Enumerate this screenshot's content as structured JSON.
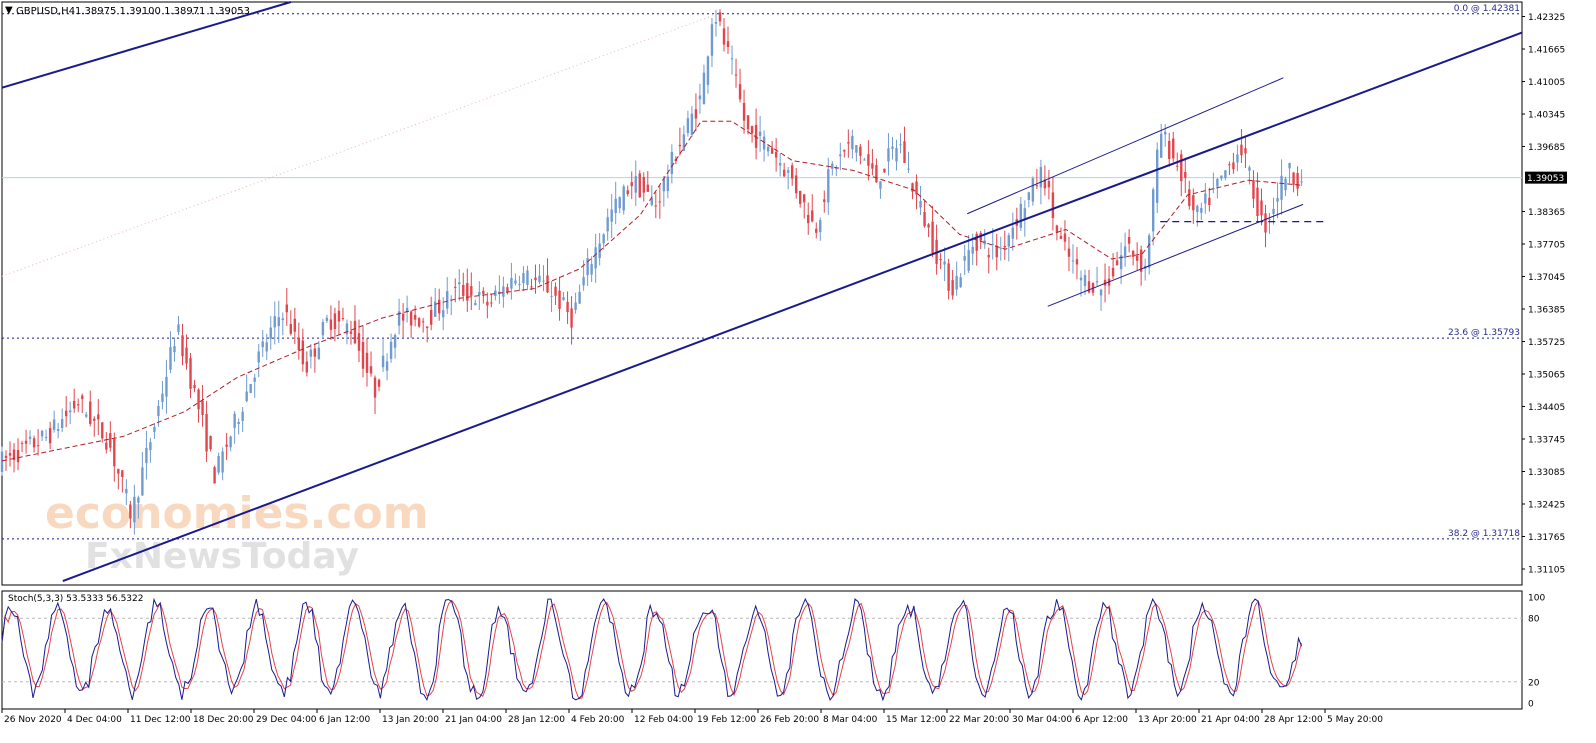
{
  "header": {
    "symbol": "GBPUSD,H4",
    "ohlc": "1.38975 1.39100 1.38971 1.39053"
  },
  "indicator": {
    "label": "Stoch(5,3,3) 53.5333 56.5322",
    "main_value": 53.5333,
    "signal_value": 56.5322,
    "scale_labels": [
      "100",
      "80",
      "20",
      "0"
    ],
    "levels": [
      80,
      20
    ]
  },
  "watermark": {
    "line1": "economies.com",
    "line2": "FxNewsToday"
  },
  "fib_levels": [
    {
      "label": "0.0 @ 1.42381",
      "price": 1.42381
    },
    {
      "label": "23.6 @ 1.35793",
      "price": 1.35793
    },
    {
      "label": "38.2 @ 1.31718",
      "price": 1.31718
    }
  ],
  "current_price": {
    "label": "1.39053",
    "price": 1.39053
  },
  "colors": {
    "bull": "#6f9bd1",
    "bear": "#e2454c",
    "trendline": "#1a1a8c",
    "ma": "#b01e24",
    "grid_dotted": "#1a1a8c",
    "price_line": "#add8e6",
    "stoch_main": "#1a1a8c",
    "stoch_signal": "#e2454c"
  },
  "chart_data": {
    "type": "candlestick",
    "symbol": "GBPUSD",
    "timeframe": "H4",
    "ylim": [
      1.3078,
      1.4262
    ],
    "y_ticks": [
      "1.42325",
      "1.41665",
      "1.41005",
      "1.40345",
      "1.39685",
      "1.39053",
      "1.38365",
      "1.37705",
      "1.37045",
      "1.36385",
      "1.35725",
      "1.35065",
      "1.34405",
      "1.33745",
      "1.33085",
      "1.32425",
      "1.31765",
      "1.31105"
    ],
    "x_ticks": [
      "26 Nov 2020",
      "4 Dec 04:00",
      "11 Dec 12:00",
      "18 Dec 20:00",
      "29 Dec 04:00",
      "6 Jan 12:00",
      "13 Jan 20:00",
      "21 Jan 04:00",
      "28 Jan 12:00",
      "4 Feb 20:00",
      "12 Feb 04:00",
      "19 Feb 12:00",
      "26 Feb 20:00",
      "8 Mar 04:00",
      "15 Mar 12:00",
      "22 Mar 20:00",
      "30 Mar 04:00",
      "6 Apr 12:00",
      "13 Apr 20:00",
      "21 Apr 04:00",
      "28 Apr 12:00",
      "5 May 20:00"
    ],
    "close_path": [
      [
        0,
        1.333
      ],
      [
        0.03,
        1.338
      ],
      [
        0.05,
        1.345
      ],
      [
        0.07,
        1.337
      ],
      [
        0.085,
        1.322
      ],
      [
        0.1,
        1.34
      ],
      [
        0.115,
        1.36
      ],
      [
        0.13,
        1.343
      ],
      [
        0.14,
        1.33
      ],
      [
        0.155,
        1.342
      ],
      [
        0.17,
        1.355
      ],
      [
        0.185,
        1.364
      ],
      [
        0.2,
        1.352
      ],
      [
        0.215,
        1.362
      ],
      [
        0.23,
        1.36
      ],
      [
        0.245,
        1.347
      ],
      [
        0.26,
        1.362
      ],
      [
        0.28,
        1.362
      ],
      [
        0.3,
        1.368
      ],
      [
        0.32,
        1.365
      ],
      [
        0.34,
        1.371
      ],
      [
        0.36,
        1.368
      ],
      [
        0.375,
        1.362
      ],
      [
        0.385,
        1.372
      ],
      [
        0.4,
        1.383
      ],
      [
        0.415,
        1.39
      ],
      [
        0.43,
        1.385
      ],
      [
        0.445,
        1.397
      ],
      [
        0.46,
        1.407
      ],
      [
        0.468,
        1.425
      ],
      [
        0.48,
        1.413
      ],
      [
        0.49,
        1.4
      ],
      [
        0.505,
        1.397
      ],
      [
        0.52,
        1.39
      ],
      [
        0.535,
        1.38
      ],
      [
        0.545,
        1.392
      ],
      [
        0.56,
        1.398
      ],
      [
        0.575,
        1.39
      ],
      [
        0.59,
        1.398
      ],
      [
        0.6,
        1.388
      ],
      [
        0.615,
        1.375
      ],
      [
        0.625,
        1.368
      ],
      [
        0.64,
        1.378
      ],
      [
        0.655,
        1.375
      ],
      [
        0.67,
        1.384
      ],
      [
        0.685,
        1.392
      ],
      [
        0.695,
        1.378
      ],
      [
        0.71,
        1.37
      ],
      [
        0.725,
        1.368
      ],
      [
        0.74,
        1.377
      ],
      [
        0.752,
        1.372
      ],
      [
        0.762,
        1.4
      ],
      [
        0.775,
        1.392
      ],
      [
        0.785,
        1.382
      ],
      [
        0.8,
        1.389
      ],
      [
        0.815,
        1.397
      ],
      [
        0.83,
        1.38
      ],
      [
        0.845,
        1.392
      ],
      [
        0.855,
        1.39
      ]
    ],
    "moving_average_path": [
      [
        0,
        1.333
      ],
      [
        0.08,
        1.338
      ],
      [
        0.12,
        1.343
      ],
      [
        0.155,
        1.35
      ],
      [
        0.2,
        1.356
      ],
      [
        0.25,
        1.362
      ],
      [
        0.3,
        1.366
      ],
      [
        0.35,
        1.368
      ],
      [
        0.38,
        1.372
      ],
      [
        0.42,
        1.383
      ],
      [
        0.46,
        1.402
      ],
      [
        0.48,
        1.402
      ],
      [
        0.52,
        1.394
      ],
      [
        0.56,
        1.392
      ],
      [
        0.6,
        1.388
      ],
      [
        0.63,
        1.379
      ],
      [
        0.66,
        1.376
      ],
      [
        0.7,
        1.38
      ],
      [
        0.73,
        1.374
      ],
      [
        0.75,
        1.375
      ],
      [
        0.78,
        1.387
      ],
      [
        0.82,
        1.39
      ],
      [
        0.855,
        1.389
      ]
    ],
    "trendlines": [
      {
        "from": [
          0.0,
          1.4088
        ],
        "to": [
          0.19,
          1.4262
        ]
      },
      {
        "from": [
          0.04,
          1.3086
        ],
        "to": [
          1.0,
          1.42
        ]
      },
      {
        "from": [
          0.635,
          1.3832
        ],
        "to": [
          0.843,
          1.4108
        ]
      },
      {
        "from": [
          0.688,
          1.3644
        ],
        "to": [
          0.856,
          1.3851
        ]
      }
    ],
    "horizontal_levels": [
      1.42381,
      1.35793,
      1.31718,
      1.3816
    ],
    "stochastic": {
      "main": 53.5333,
      "signal": 56.5322,
      "levels": [
        80,
        20
      ]
    }
  }
}
